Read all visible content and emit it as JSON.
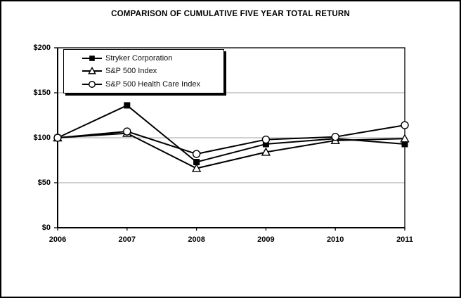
{
  "chart_data": {
    "type": "line",
    "title": "COMPARISON OF CUMULATIVE FIVE YEAR TOTAL RETURN",
    "categories": [
      "2006",
      "2007",
      "2008",
      "2009",
      "2010",
      "2011"
    ],
    "series": [
      {
        "name": "Stryker Corporation",
        "marker": "filled-square",
        "values": [
          100,
          136,
          73,
          93,
          99,
          93
        ]
      },
      {
        "name": "S&P 500 Index",
        "marker": "open-triangle",
        "values": [
          100,
          105,
          66,
          84,
          97,
          99
        ]
      },
      {
        "name": "S&P 500 Health Care Index",
        "marker": "open-circle",
        "values": [
          100,
          107,
          82,
          98,
          101,
          114
        ]
      }
    ],
    "xlabel": "",
    "ylabel": "",
    "ylim": [
      0,
      200
    ],
    "y_tick_interval": 50,
    "y_tick_labels": [
      "$0",
      "$50",
      "$100",
      "$150",
      "$200"
    ],
    "grid": "horizontal",
    "gridline_color": "#a0a0a0",
    "line_color": "#000000",
    "axis_color": "#000000",
    "background_color": "#ffffff",
    "legend_position": "top-left-inside"
  }
}
